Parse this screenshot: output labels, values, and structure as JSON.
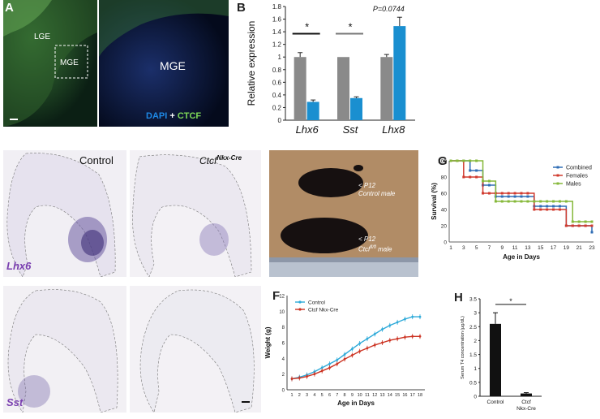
{
  "figure": {
    "panels": {
      "A": {
        "letter": "A",
        "labels": {
          "lge": "LGE",
          "mge_box": "MGE",
          "mge_right": "MGE"
        },
        "legend": {
          "dapi": "DAPI",
          "plus": " + ",
          "ctcf": "CTCF"
        },
        "colors": {
          "dapi": "#1e88e5",
          "ctcf": "#7ed957"
        }
      },
      "B": {
        "letter": "B"
      },
      "C": {
        "letter": "C",
        "control_label": "Control",
        "ko_base": "Ctcf",
        "ko_sup": "Nkx-Cre",
        "gene": "Lhx6"
      },
      "D": {
        "letter": "D",
        "gene": "Sst"
      },
      "E": {
        "letter": "E",
        "control_age": "< P12",
        "control_label": "Control male",
        "ko_age": "< P12",
        "ko_base": "Ctcf",
        "ko_sup": "fl/fl",
        "ko_label": "male"
      },
      "F": {
        "letter": "F"
      },
      "G": {
        "letter": "G"
      },
      "H": {
        "letter": "H"
      }
    }
  },
  "chart_data": [
    {
      "id": "B",
      "type": "bar",
      "categories": [
        "Lhx6",
        "Sst",
        "Lhx8"
      ],
      "series": [
        {
          "color": "#8a8a8a",
          "values": [
            1.0,
            1.0,
            1.0
          ],
          "errors": [
            0.07,
            0.0,
            0.04
          ]
        },
        {
          "color": "#1a8fd0",
          "values": [
            0.29,
            0.35,
            1.49
          ],
          "errors": [
            0.03,
            0.02,
            0.14
          ]
        }
      ],
      "ylabel": "Relative expression",
      "ylim": [
        0,
        1.8
      ],
      "yticks": [
        "0",
        "0.2",
        "0.4",
        "0.6",
        "0.8",
        "1",
        "1.2",
        "1.4",
        "1.6",
        "1.8"
      ],
      "annotations": {
        "sig_lhx6": "*",
        "sig_sst": "*",
        "p_lhx8": "P=0.0744"
      },
      "colors": {
        "axis": "#222222"
      }
    },
    {
      "id": "F",
      "type": "line",
      "x": [
        1,
        2,
        3,
        4,
        5,
        6,
        7,
        8,
        9,
        10,
        11,
        12,
        13,
        14,
        15,
        16,
        17,
        18
      ],
      "xticks": [
        "1",
        "2",
        "3",
        "4",
        "5",
        "6",
        "7",
        "8",
        "9",
        "10",
        "11",
        "12",
        "13",
        "14",
        "15",
        "16",
        "17",
        "18"
      ],
      "series": [
        {
          "name": "Control",
          "color": "#2eaad9",
          "values": [
            1.4,
            1.6,
            1.9,
            2.3,
            2.8,
            3.3,
            3.8,
            4.5,
            5.2,
            5.9,
            6.5,
            7.1,
            7.7,
            8.2,
            8.6,
            9.0,
            9.3,
            9.3
          ]
        },
        {
          "name": "Ctcf Nkx-Cre",
          "color": "#cc3322",
          "values": [
            1.4,
            1.5,
            1.7,
            2.0,
            2.4,
            2.8,
            3.3,
            3.9,
            4.4,
            4.9,
            5.3,
            5.7,
            6.0,
            6.3,
            6.5,
            6.7,
            6.8,
            6.8
          ]
        }
      ],
      "xlabel": "Age in Days",
      "ylabel": "Weight (g)",
      "ylim": [
        0,
        12
      ],
      "yticks": [
        "0",
        "2",
        "4",
        "6",
        "8",
        "10",
        "12"
      ]
    },
    {
      "id": "G",
      "type": "line",
      "x": [
        1,
        2,
        3,
        4,
        5,
        6,
        7,
        8,
        9,
        10,
        11,
        12,
        13,
        14,
        15,
        16,
        17,
        18,
        19,
        20,
        21,
        22,
        23
      ],
      "xticks": [
        "1",
        "3",
        "5",
        "7",
        "9",
        "11",
        "13",
        "15",
        "17",
        "19",
        "21",
        "23"
      ],
      "series": [
        {
          "name": "Combined",
          "color": "#2f6db5",
          "values": [
            100,
            100,
            100,
            88,
            88,
            70,
            70,
            56,
            56,
            56,
            56,
            56,
            56,
            44,
            44,
            44,
            44,
            44,
            20,
            20,
            20,
            20,
            12
          ]
        },
        {
          "name": "Females",
          "color": "#d03a2e",
          "values": [
            100,
            100,
            80,
            80,
            80,
            60,
            60,
            60,
            60,
            60,
            60,
            60,
            60,
            40,
            40,
            40,
            40,
            40,
            20,
            20,
            20,
            20,
            20
          ]
        },
        {
          "name": "Males",
          "color": "#86b83a",
          "values": [
            100,
            100,
            100,
            100,
            100,
            75,
            75,
            50,
            50,
            50,
            50,
            50,
            50,
            50,
            50,
            50,
            50,
            50,
            50,
            25,
            25,
            25,
            25
          ]
        }
      ],
      "xlabel": "Age in Days",
      "ylabel": "Survival (%)",
      "ylim": [
        0,
        100
      ],
      "yticks": [
        "0",
        "20",
        "40",
        "60",
        "80",
        "100"
      ]
    },
    {
      "id": "H",
      "type": "bar",
      "categories": [
        "Control",
        "Ctcf Nkx-Cre"
      ],
      "values": [
        2.6,
        0.1
      ],
      "errors": [
        0.4,
        0.03
      ],
      "ylabel": "Serum T4 concentration (μg/dL)",
      "ylim": [
        0,
        3.5
      ],
      "yticks": [
        "0",
        "0.5",
        "1",
        "1.5",
        "2",
        "2.5",
        "3",
        "3.5"
      ],
      "annotations": {
        "sig": "*"
      },
      "colors": {
        "bar": "#111111"
      }
    }
  ]
}
